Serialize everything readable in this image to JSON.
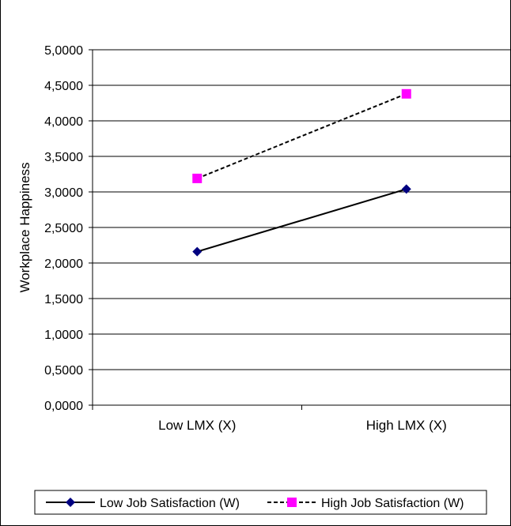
{
  "chart_data": {
    "type": "line",
    "title": "",
    "xlabel": "",
    "ylabel": "Workplace Happiness",
    "categories": [
      "Low LMX (X)",
      "High LMX (X)"
    ],
    "ylim": [
      0,
      5
    ],
    "yticks": [
      "0,0000",
      "0,5000",
      "1,0000",
      "1,5000",
      "2,0000",
      "2,5000",
      "3,0000",
      "3,5000",
      "4,0000",
      "4,5000",
      "5,0000"
    ],
    "ytick_values": [
      0,
      0.5,
      1.0,
      1.5,
      2.0,
      2.5,
      3.0,
      3.5,
      4.0,
      4.5,
      5.0
    ],
    "grid": true,
    "legend_position": "bottom",
    "series": [
      {
        "name": "Low Job Satisfaction (W)",
        "values": [
          2.16,
          3.04
        ],
        "color": "#000080",
        "line_color": "#000000",
        "line_style": "solid",
        "marker": "diamond"
      },
      {
        "name": "High Job Satisfaction (W)",
        "values": [
          3.19,
          4.38
        ],
        "color": "#ff00ff",
        "line_color": "#000000",
        "line_style": "dashed",
        "marker": "square"
      }
    ]
  }
}
